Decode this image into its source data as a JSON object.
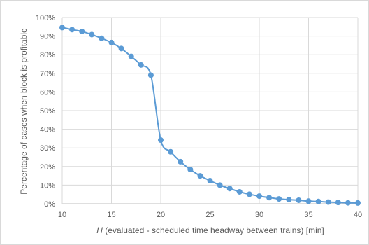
{
  "chart_data": {
    "type": "scatter",
    "title": "",
    "xlabel_italic": "H",
    "xlabel_rest": " (evaluated - scheduled time headway between trains) [min]",
    "ylabel": "Percentage of cases when block is profitable",
    "xlim": [
      10,
      40
    ],
    "ylim": [
      0,
      100
    ],
    "x_ticks": [
      10,
      15,
      20,
      25,
      30,
      35,
      40
    ],
    "y_ticks": [
      "0%",
      "10%",
      "20%",
      "30%",
      "40%",
      "50%",
      "60%",
      "70%",
      "80%",
      "90%",
      "100%"
    ],
    "y_tick_values": [
      0,
      10,
      20,
      30,
      40,
      50,
      60,
      70,
      80,
      90,
      100
    ],
    "grid": true,
    "series": [
      {
        "color": "#5b9bd5",
        "x": [
          10,
          11,
          12,
          13,
          14,
          15,
          16,
          17,
          18,
          19,
          20,
          21,
          22,
          23,
          24,
          25,
          26,
          27,
          28,
          29,
          30,
          31,
          32,
          33,
          34,
          35,
          36,
          37,
          38,
          39,
          40
        ],
        "y": [
          94.6,
          93.5,
          92.5,
          90.8,
          88.8,
          86.5,
          83.3,
          79.1,
          74.5,
          69.0,
          34.2,
          27.9,
          22.6,
          18.4,
          15.0,
          12.4,
          10.0,
          8.2,
          6.4,
          5.1,
          4.1,
          3.3,
          2.6,
          2.2,
          1.9,
          1.4,
          1.2,
          0.9,
          0.7,
          0.5,
          0.4
        ]
      }
    ]
  }
}
